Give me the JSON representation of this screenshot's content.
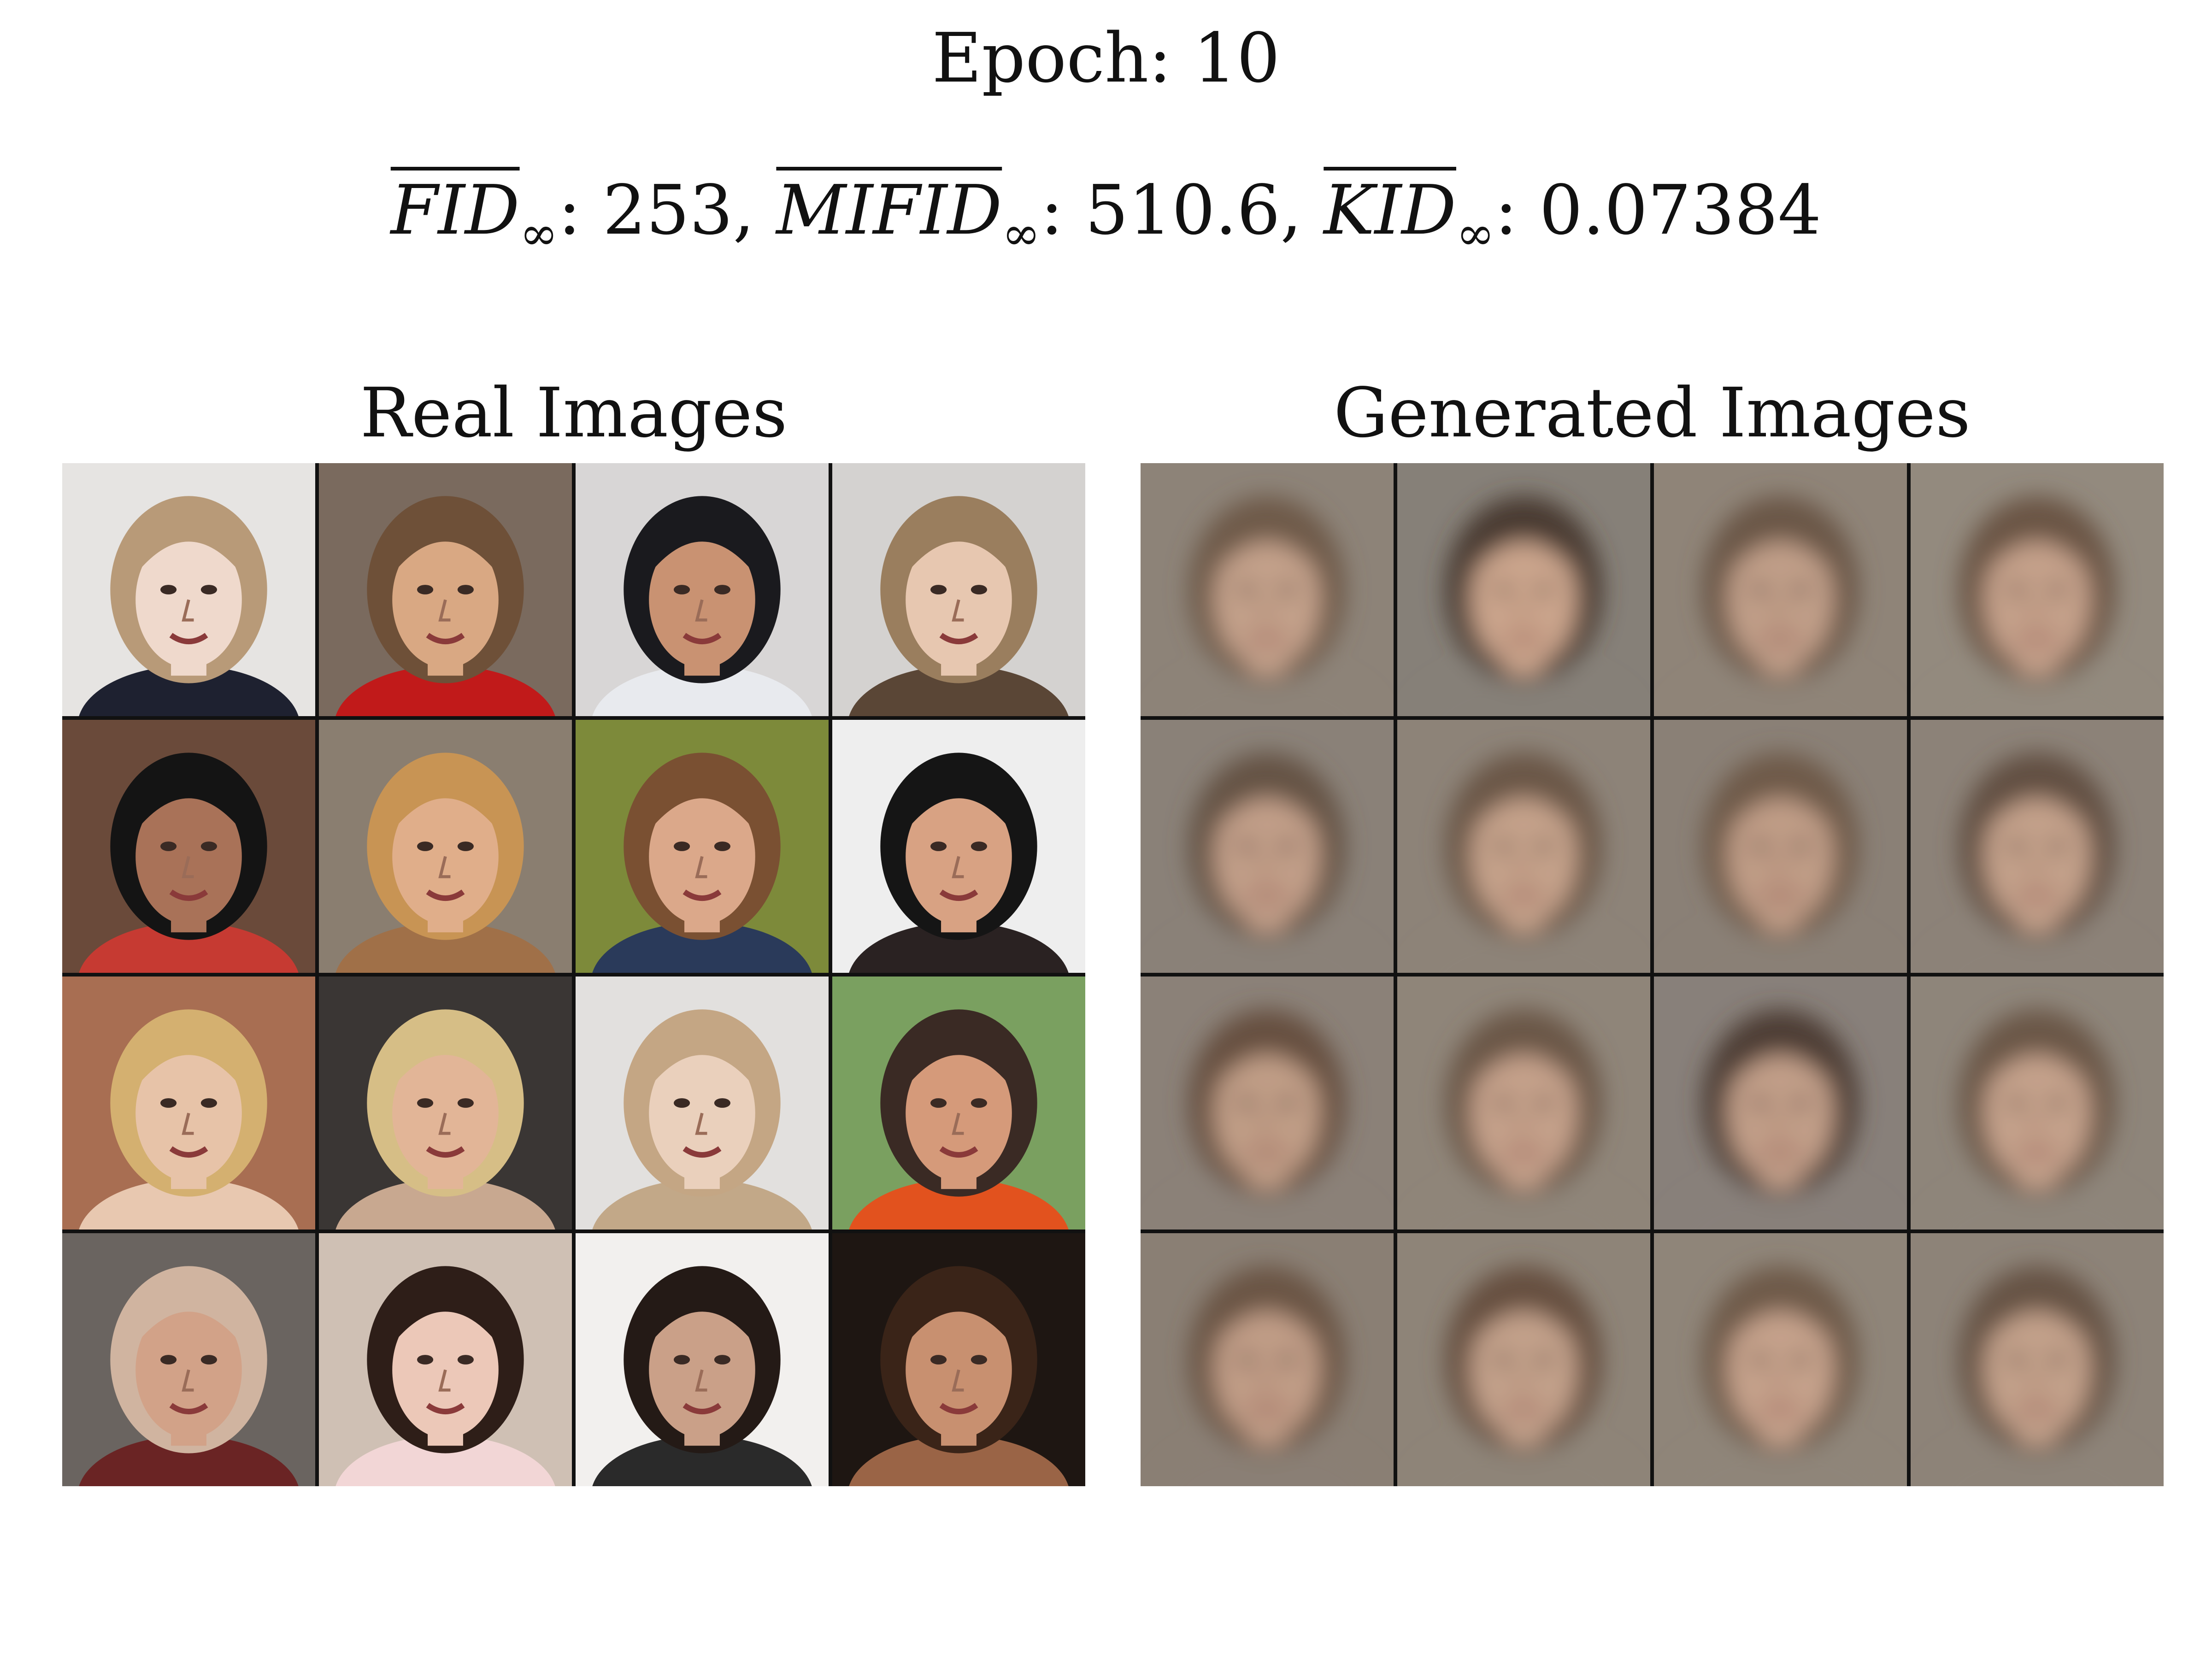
{
  "epoch_label": "Epoch: 10",
  "metrics": [
    {
      "name": "FID",
      "sub": "∞",
      "value": "253",
      "sep": ", "
    },
    {
      "name": "MIFID",
      "sub": "∞",
      "value": "510.6",
      "sep": ", "
    },
    {
      "name": "KID",
      "sub": "∞",
      "value": "0.07384",
      "sep": ""
    }
  ],
  "panels": {
    "real_title": "Real Images",
    "generated_title": "Generated Images"
  },
  "real_tiles": [
    {
      "bg": "#e6e4e2",
      "hair": "#b89a78",
      "skin": "#efd9cc",
      "shirt": "#1e2130"
    },
    {
      "bg": "#7a6a5e",
      "hair": "#6e5038",
      "skin": "#d9a883",
      "shirt": "#c11a1a"
    },
    {
      "bg": "#d8d6d6",
      "hair": "#1a1a1e",
      "skin": "#c99272",
      "shirt": "#e8eaee"
    },
    {
      "bg": "#d4d2d0",
      "hair": "#9a7e5e",
      "skin": "#e7c7b0",
      "shirt": "#5a4636"
    },
    {
      "bg": "#6a4a3a",
      "hair": "#141414",
      "skin": "#a97258",
      "shirt": "#c63a32"
    },
    {
      "bg": "#8a7e70",
      "hair": "#c89454",
      "skin": "#e0ae8a",
      "shirt": "#a07048"
    },
    {
      "bg": "#7d8a3a",
      "hair": "#7a5032",
      "skin": "#dba88a",
      "shirt": "#2a3a5a"
    },
    {
      "bg": "#eeeeee",
      "hair": "#151515",
      "skin": "#d8a283",
      "shirt": "#2a2222"
    },
    {
      "bg": "#a86e52",
      "hair": "#d4b070",
      "skin": "#e7c3a8",
      "shirt": "#e8c8b0"
    },
    {
      "bg": "#3a3634",
      "hair": "#d6be86",
      "skin": "#e2b597",
      "shirt": "#c8a890"
    },
    {
      "bg": "#e2e0de",
      "hair": "#c4a684",
      "skin": "#ead0bc",
      "shirt": "#c2a888"
    },
    {
      "bg": "#7aa060",
      "hair": "#3a2a24",
      "skin": "#d59a7a",
      "shirt": "#e2521e"
    },
    {
      "bg": "#6a6460",
      "hair": "#d0b4a0",
      "skin": "#d2a288",
      "shirt": "#6a2424"
    },
    {
      "bg": "#cfc0b4",
      "hair": "#2e1e18",
      "skin": "#ecc8b8",
      "shirt": "#f2d6d6"
    },
    {
      "bg": "#f2f0ee",
      "hair": "#241a16",
      "skin": "#caa088",
      "shirt": "#2a2a2a"
    },
    {
      "bg": "#1e1612",
      "hair": "#3a2418",
      "skin": "#c89070",
      "shirt": "#9a6446"
    }
  ],
  "generated_tiles": [
    {
      "bg": "#8d8378",
      "hair": "#6e5a4a",
      "skin": "#c3a08a"
    },
    {
      "bg": "#868078",
      "hair": "#4a3a30",
      "skin": "#caa48c"
    },
    {
      "bg": "#8f8478",
      "hair": "#6a5646",
      "skin": "#c09e88"
    },
    {
      "bg": "#938a7e",
      "hair": "#6a5444",
      "skin": "#c4a08a"
    },
    {
      "bg": "#8a8178",
      "hair": "#655244",
      "skin": "#c19e88"
    },
    {
      "bg": "#8d8378",
      "hair": "#6a5646",
      "skin": "#c4a18a"
    },
    {
      "bg": "#8a8076",
      "hair": "#6e5a4a",
      "skin": "#bf9c86"
    },
    {
      "bg": "#8c8278",
      "hair": "#625042",
      "skin": "#c3a08a"
    },
    {
      "bg": "#8b8178",
      "hair": "#664f40",
      "skin": "#c09d86"
    },
    {
      "bg": "#8f8579",
      "hair": "#6a5646",
      "skin": "#c4a08a"
    },
    {
      "bg": "#88807a",
      "hair": "#4e3e34",
      "skin": "#c19e88"
    },
    {
      "bg": "#8e857a",
      "hair": "#6a5646",
      "skin": "#c4a18b"
    },
    {
      "bg": "#8a7f74",
      "hair": "#6a5444",
      "skin": "#c09c86"
    },
    {
      "bg": "#8e8478",
      "hair": "#664f40",
      "skin": "#c2a08a"
    },
    {
      "bg": "#8f8579",
      "hair": "#6e5a4a",
      "skin": "#c5a18b"
    },
    {
      "bg": "#8d8378",
      "hair": "#665244",
      "skin": "#c2a08a"
    }
  ]
}
